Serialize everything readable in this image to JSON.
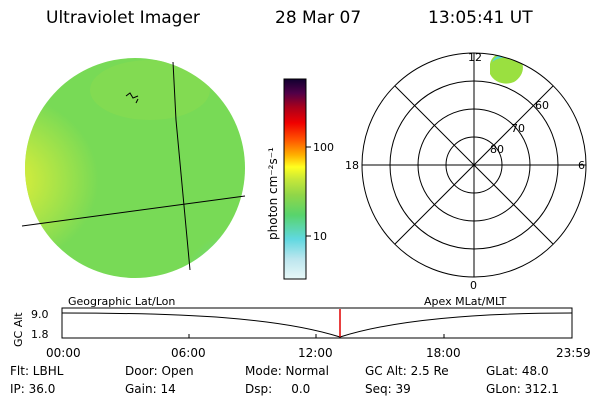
{
  "header": {
    "instrument": "Ultraviolet Imager",
    "date": "28 Mar 07",
    "time": "13:05:41 UT"
  },
  "colorbar": {
    "unit_label": "photon cm⁻²s⁻¹",
    "ticks": [
      "100",
      "10"
    ],
    "colors": [
      "#e8f8f8",
      "#bce6ee",
      "#60d8e0",
      "#58d46c",
      "#90d648",
      "#c8e838",
      "#ffff20",
      "#ffb000",
      "#ff5000",
      "#f00000",
      "#a8001c",
      "#500048",
      "#100030"
    ]
  },
  "polar_plot": {
    "mlt_labels": [
      "12",
      "18",
      "6",
      "0"
    ],
    "mlat_labels": [
      "60",
      "70",
      "80"
    ]
  },
  "timeline": {
    "left_label": "Geographic Lat/Lon",
    "right_label": "Apex MLat/MLT",
    "axis_title": "GC Alt",
    "y_ticks": [
      "9.0",
      "1.8"
    ],
    "x_ticks": [
      "00:00",
      "06:00",
      "12:00",
      "18:00",
      "23:59"
    ],
    "cursor_color": "#e00000"
  },
  "status": {
    "flt": "Flt: LBHL",
    "door": "Door: Open",
    "mode": "Mode: Normal",
    "gc_alt": "GC Alt: 2.5 Re",
    "glat": "GLat: 48.0",
    "ip": "IP: 36.0",
    "gain": "Gain: 14",
    "dsp": "Dsp:     0.0",
    "seq": "Seq: 39",
    "glon": "GLon: 312.1"
  },
  "image_colors": {
    "globe_base": "#78da56",
    "globe_bright": "#e8f036",
    "globe_cyan": "#58d8d0",
    "aurora": "#9ae040"
  }
}
